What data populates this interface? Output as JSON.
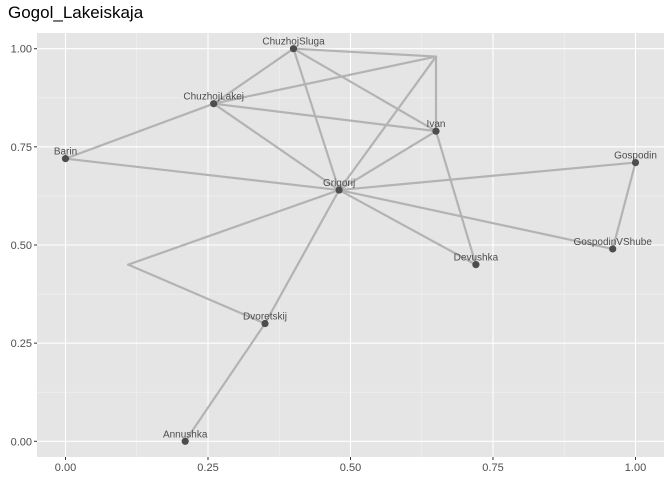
{
  "chart_data": {
    "type": "scatter",
    "title": "Gogol_Lakeiskaja",
    "xlabel": "",
    "ylabel": "",
    "xlim": [
      -0.05,
      1.05
    ],
    "ylim": [
      -0.04,
      1.04
    ],
    "x_ticks": [
      "0.00",
      "0.25",
      "0.50",
      "0.75",
      "1.00"
    ],
    "x_tick_values": [
      0,
      0.25,
      0.5,
      0.75,
      1.0
    ],
    "y_ticks": [
      "0.00",
      "0.25",
      "0.50",
      "0.75",
      "1.00"
    ],
    "y_tick_values": [
      0,
      0.25,
      0.5,
      0.75,
      1.0
    ],
    "grid": true,
    "nodes": [
      {
        "label": "ChuzhojSluga",
        "x": 0.4,
        "y": 1.0
      },
      {
        "label": "",
        "x": 0.65,
        "y": 0.98
      },
      {
        "label": "ChuzhojLakej",
        "x": 0.26,
        "y": 0.86
      },
      {
        "label": "Ivan",
        "x": 0.65,
        "y": 0.79
      },
      {
        "label": "Barin",
        "x": 0.0,
        "y": 0.72
      },
      {
        "label": "Gospodin",
        "x": 1.0,
        "y": 0.71
      },
      {
        "label": "Grigorij",
        "x": 0.48,
        "y": 0.64
      },
      {
        "label": "GospodinVShube",
        "x": 0.96,
        "y": 0.49
      },
      {
        "label": "Devushka",
        "x": 0.72,
        "y": 0.45
      },
      {
        "label": "",
        "x": 0.11,
        "y": 0.45
      },
      {
        "label": "Dvoretskij",
        "x": 0.35,
        "y": 0.3
      },
      {
        "label": "Annushka",
        "x": 0.21,
        "y": 0.0
      }
    ],
    "edges": [
      [
        "ChuzhojSluga",
        "ChuzhojLakej"
      ],
      [
        "ChuzhojSluga",
        "Ivan"
      ],
      [
        "ChuzhojSluga",
        "Grigorij"
      ],
      [
        "ChuzhojSluga",
        "n1"
      ],
      [
        "n1",
        "ChuzhojLakej"
      ],
      [
        "n1",
        "Ivan"
      ],
      [
        "n1",
        "Grigorij"
      ],
      [
        "ChuzhojLakej",
        "Barin"
      ],
      [
        "ChuzhojLakej",
        "Ivan"
      ],
      [
        "ChuzhojLakej",
        "Grigorij"
      ],
      [
        "Ivan",
        "Devushka"
      ],
      [
        "Ivan",
        "Grigorij"
      ],
      [
        "Barin",
        "Grigorij"
      ],
      [
        "Grigorij",
        "Gospodin"
      ],
      [
        "Grigorij",
        "GospodinVShube"
      ],
      [
        "Grigorij",
        "Devushka"
      ],
      [
        "Grigorij",
        "Dvoretskij"
      ],
      [
        "Grigorij",
        "n9"
      ],
      [
        "n9",
        "Dvoretskij"
      ],
      [
        "Gospodin",
        "GospodinVShube"
      ],
      [
        "Dvoretskij",
        "Annushka"
      ]
    ],
    "colors": {
      "panel": "#e5e5e5",
      "grid_major": "#ffffff",
      "edge": "#b3b3b3",
      "node": "#4d4d4d"
    }
  }
}
